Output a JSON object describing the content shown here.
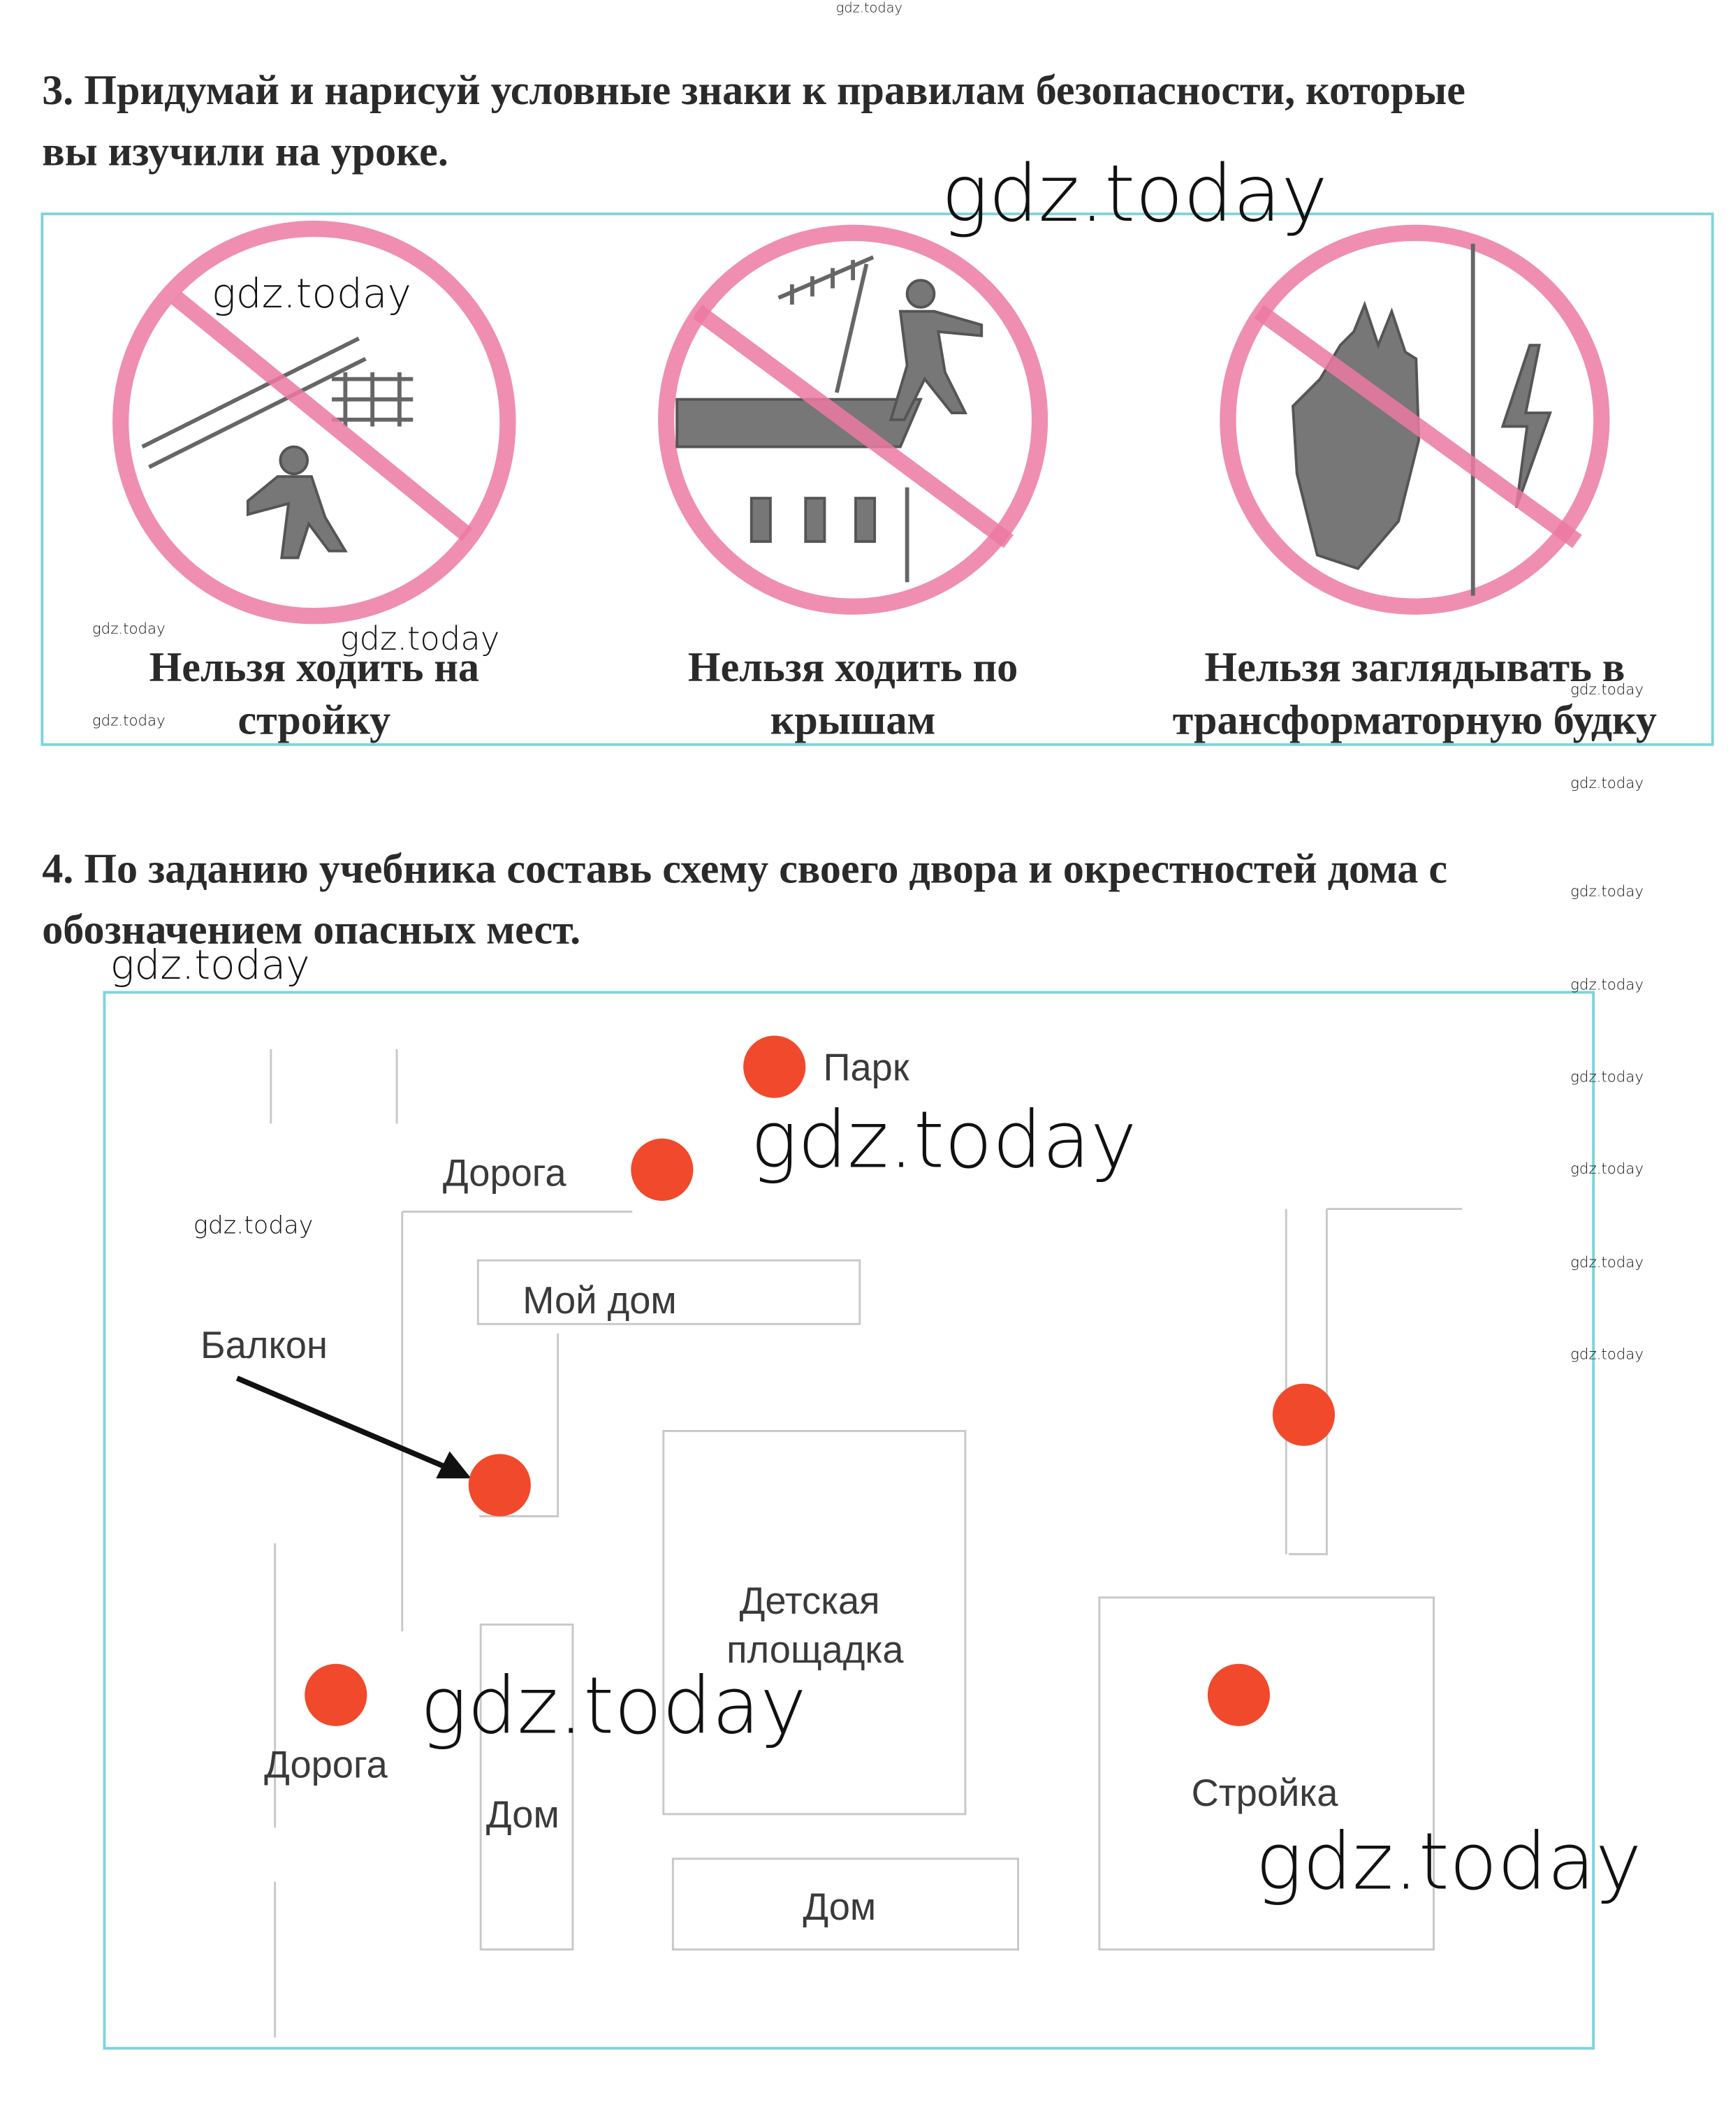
{
  "task3": {
    "title_lines": [
      "3. Придумай и нарисуй условные знаки к правилам безопасности, которые",
      "вы изучили на уроке."
    ],
    "signs": [
      {
        "caption_lines": [
          "Нельзя ходить на",
          "стройку"
        ]
      },
      {
        "caption_lines": [
          "Нельзя ходить по",
          "крышам"
        ]
      },
      {
        "caption_lines": [
          "Нельзя заглядывать в",
          "трансформаторную будку"
        ]
      }
    ]
  },
  "task4": {
    "title_lines": [
      "4. По заданию учебника составь схему своего двора и окрестностей дома с",
      "обозначением опасных мест."
    ],
    "map": {
      "park": "Парк",
      "road_top": "Дорога",
      "my_house": "Мой дом",
      "balcony": "Балкон",
      "playground_lines": [
        "Детская",
        "площадка"
      ],
      "road_left": "Дорога",
      "house_left": "Дом",
      "house_bottom": "Дом",
      "construction": "Стройка"
    }
  },
  "watermarks": [
    "gdz.today",
    "gdz.today",
    "gdz.today",
    "gdz.today",
    "gdz.today",
    "gdz.today",
    "gdz.today",
    "gdz.today",
    "gdz.today",
    "gdz.today",
    "gdz.today",
    "gdz.today",
    "gdz.today",
    "gdz.today",
    "gdz.today",
    "gdz.today",
    "gdz.today",
    "gdz.today",
    "gdz.today"
  ]
}
